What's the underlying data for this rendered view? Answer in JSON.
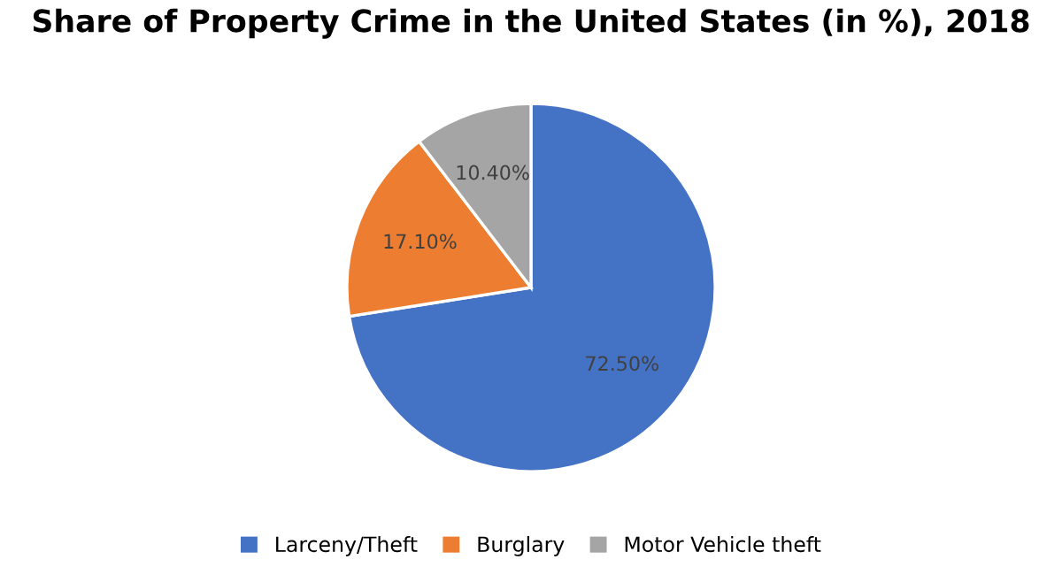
{
  "chart_data": {
    "type": "pie",
    "title": "Share of Property Crime in the United States (in %), 2018",
    "categories": [
      "Larceny/Theft",
      "Burglary",
      "Motor Vehicle theft"
    ],
    "values": [
      72.5,
      17.1,
      10.4
    ],
    "colors": [
      "#4472c4",
      "#ed7d31",
      "#a5a5a5"
    ],
    "value_labels": [
      "72.50%",
      "17.10%",
      "10.40%"
    ],
    "legend": "bottom"
  }
}
